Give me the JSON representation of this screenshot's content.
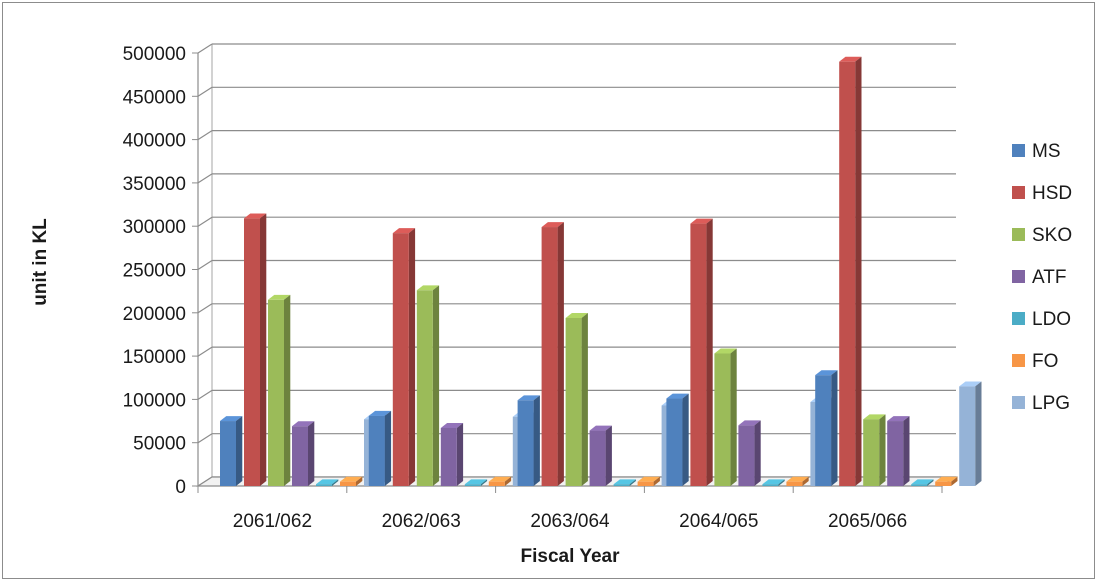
{
  "chart_data": {
    "type": "bar",
    "title": "",
    "xlabel": "Fiscal Year",
    "ylabel": "unit in KL",
    "ylim": [
      0,
      500000
    ],
    "yticks": [
      0,
      50000,
      100000,
      150000,
      200000,
      250000,
      300000,
      350000,
      400000,
      450000,
      500000
    ],
    "yticks_text": [
      "0",
      "50000",
      "100000",
      "150000",
      "200000",
      "250000",
      "300000",
      "350000",
      "400000",
      "450000",
      "500000"
    ],
    "grid": true,
    "legend_position": "right",
    "categories": [
      "2061/062",
      "2062/063",
      "2063/064",
      "2064/065",
      "2065/066"
    ],
    "series": [
      {
        "name": "MS",
        "color": "#4f81bd",
        "values": [
          75000,
          81000,
          99000,
          101000,
          128000
        ]
      },
      {
        "name": "HSD",
        "color": "#c0504d",
        "values": [
          309000,
          292000,
          299000,
          303000,
          490000
        ]
      },
      {
        "name": "SKO",
        "color": "#9bbb59",
        "values": [
          215000,
          226000,
          194000,
          153000,
          77000
        ]
      },
      {
        "name": "ATF",
        "color": "#8064a2",
        "values": [
          69000,
          67000,
          64000,
          70000,
          75000
        ]
      },
      {
        "name": "LDO",
        "color": "#4bacc6",
        "values": [
          2000,
          2000,
          2000,
          2000,
          2000
        ]
      },
      {
        "name": "FO",
        "color": "#f79646",
        "values": [
          5000,
          5000,
          5000,
          5000,
          5000
        ]
      },
      {
        "name": "LPG",
        "color": "#95b3d7",
        "values": [
          77000,
          80000,
          93000,
          97000,
          115000
        ]
      }
    ]
  }
}
